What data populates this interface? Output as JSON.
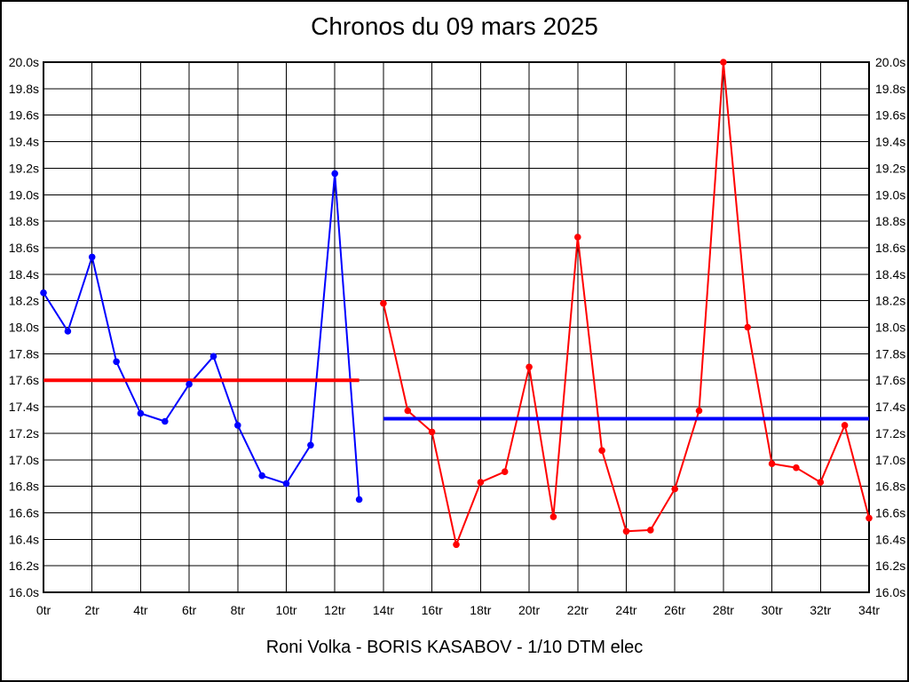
{
  "chart_data": {
    "type": "line",
    "title": "Chronos du 09 mars 2025",
    "footer": "Roni Volka - BORIS KASABOV - 1/10 DTM elec",
    "grid": true,
    "x_axis": {
      "min": 0,
      "max": 34,
      "tick_step": 2,
      "unit": "tr",
      "tick_labels": [
        "0tr",
        "2tr",
        "4tr",
        "6tr",
        "8tr",
        "10tr",
        "12tr",
        "14tr",
        "16tr",
        "18tr",
        "20tr",
        "22tr",
        "24tr",
        "26tr",
        "28tr",
        "30tr",
        "32tr",
        "34tr"
      ]
    },
    "y_axis": {
      "min": 16.0,
      "max": 20.0,
      "tick_step": 0.2,
      "unit": "s",
      "labels_on_both_sides": true,
      "tick_labels": [
        "20.0s",
        "19.8s",
        "19.6s",
        "19.4s",
        "19.2s",
        "19.0s",
        "18.8s",
        "18.6s",
        "18.4s",
        "18.2s",
        "18.0s",
        "17.8s",
        "17.6s",
        "17.4s",
        "17.2s",
        "17.0s",
        "16.8s",
        "16.6s",
        "16.4s",
        "16.2s",
        "16.0s"
      ]
    },
    "series": [
      {
        "name": "blue-laps",
        "color": "#0000ff",
        "x": [
          0,
          1,
          2,
          3,
          4,
          5,
          6,
          7,
          8,
          9,
          10,
          11,
          12,
          13
        ],
        "values": [
          18.26,
          17.97,
          18.53,
          17.74,
          17.35,
          17.29,
          17.57,
          17.78,
          17.26,
          16.88,
          16.82,
          17.11,
          19.16,
          16.7
        ]
      },
      {
        "name": "red-laps",
        "color": "#ff0000",
        "x": [
          14,
          15,
          16,
          17,
          18,
          19,
          20,
          21,
          22,
          23,
          24,
          25,
          26,
          27,
          28,
          29,
          30,
          31,
          32,
          33,
          34
        ],
        "values": [
          18.18,
          17.37,
          17.21,
          16.36,
          16.83,
          16.91,
          17.7,
          16.57,
          18.68,
          17.07,
          16.46,
          16.47,
          16.78,
          17.37,
          20.0,
          18.0,
          16.97,
          16.94,
          16.83,
          17.26,
          16.56
        ]
      }
    ],
    "average_lines": [
      {
        "name": "red-average-line",
        "color": "#ff0000",
        "value": 17.6,
        "x_start": 0,
        "x_end": 13
      },
      {
        "name": "blue-average-line",
        "color": "#0000ff",
        "value": 17.31,
        "x_start": 14,
        "x_end": 34
      }
    ]
  }
}
